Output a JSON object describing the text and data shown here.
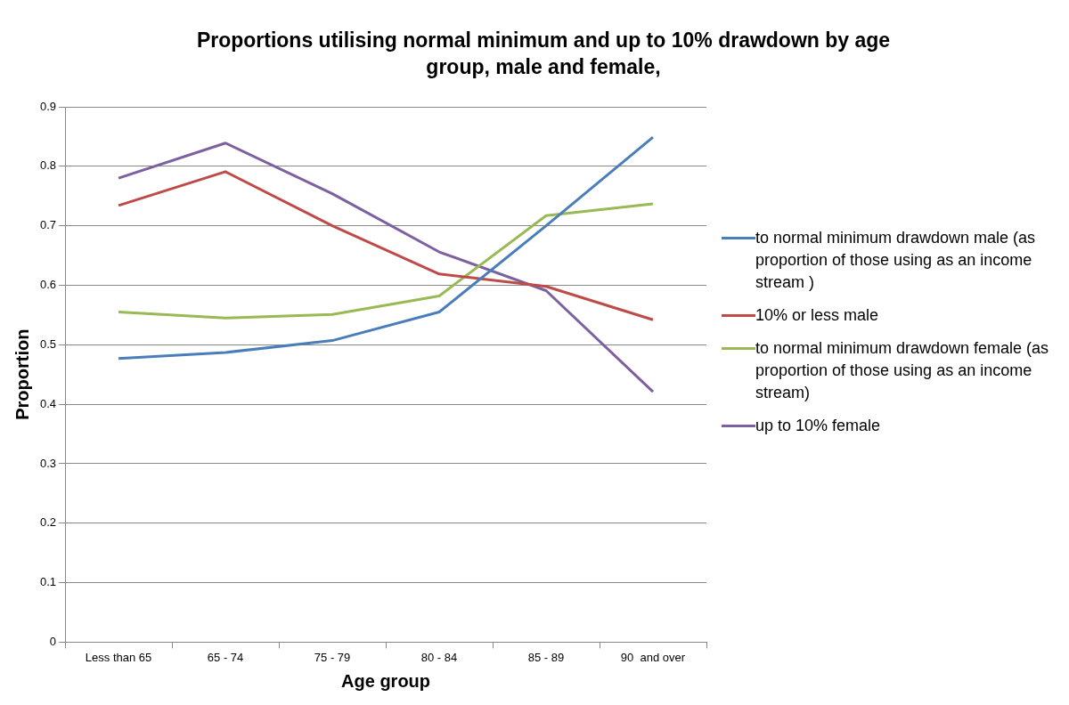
{
  "chart_data": {
    "type": "line",
    "title": "Proportions utilising normal minimum and up to 10% drawdown by age group,  male and female,",
    "xlabel": "Age group",
    "ylabel": "Proportion",
    "categories": [
      "Less than 65",
      "65 - 74",
      "75 - 79",
      "80 - 84",
      "85 - 89",
      "90  and over"
    ],
    "series": [
      {
        "name": "to normal minimum drawdown male (as proportion of those using as an income stream )",
        "color": "#4a7ebb",
        "values": [
          0.477,
          0.487,
          0.507,
          0.555,
          0.7,
          0.849
        ]
      },
      {
        "name": "10% or less male",
        "color": "#be4b48",
        "values": [
          0.734,
          0.791,
          0.7,
          0.619,
          0.598,
          0.542
        ]
      },
      {
        "name": "to normal minimum drawdown female (as proportion of those using as an income stream)",
        "color": "#98b954",
        "values": [
          0.555,
          0.545,
          0.551,
          0.582,
          0.717,
          0.737
        ]
      },
      {
        "name": "up to 10% female",
        "color": "#7d60a0",
        "values": [
          0.78,
          0.839,
          0.754,
          0.656,
          0.591,
          0.421
        ]
      }
    ],
    "ylim": [
      0,
      0.9
    ],
    "yticks": [
      0,
      0.1,
      0.2,
      0.3,
      0.4,
      0.5,
      0.6,
      0.7,
      0.8,
      0.9
    ],
    "grid": "y",
    "legend": "right",
    "marker": "none",
    "line_style": "solid"
  }
}
